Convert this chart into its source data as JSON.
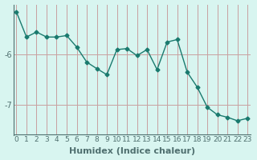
{
  "x": [
    0,
    1,
    2,
    3,
    4,
    5,
    6,
    7,
    8,
    9,
    10,
    11,
    12,
    13,
    14,
    15,
    16,
    17,
    18,
    19,
    20,
    21,
    22,
    23
  ],
  "y": [
    -5.15,
    -5.65,
    -5.55,
    -5.65,
    -5.65,
    -5.62,
    -5.85,
    -6.15,
    -6.28,
    -6.4,
    -5.9,
    -5.88,
    -6.02,
    -5.9,
    -6.3,
    -5.75,
    -5.7,
    -6.35,
    -6.65,
    -7.05,
    -7.2,
    -7.25,
    -7.32,
    -7.27
  ],
  "line_color": "#1a7a6e",
  "marker": "D",
  "markersize": 2.5,
  "linewidth": 1.0,
  "bg_color": "#d8f5f0",
  "grid_color": "#c8a0a0",
  "xlabel": "Humidex (Indice chaleur)",
  "xlabel_fontsize": 8,
  "yticks": [
    -7,
    -6
  ],
  "ylim": [
    -7.6,
    -5.0
  ],
  "xlim": [
    -0.3,
    23.3
  ],
  "xtick_labels": [
    "0",
    "1",
    "2",
    "3",
    "4",
    "5",
    "6",
    "7",
    "8",
    "9",
    "10",
    "11",
    "12",
    "13",
    "14",
    "15",
    "16",
    "17",
    "18",
    "19",
    "20",
    "21",
    "22",
    "23"
  ],
  "tick_fontsize": 6.5,
  "axis_color": "#507070",
  "spine_color": "#507070"
}
